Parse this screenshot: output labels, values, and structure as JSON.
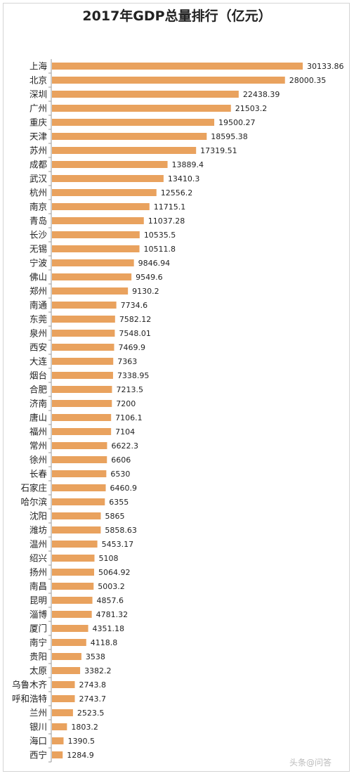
{
  "chart_data": {
    "type": "bar",
    "orientation": "horizontal",
    "title": "2017年GDP总量排行（亿元）",
    "bar_color": "#E9A25E",
    "axis_color": "#9a9a9a",
    "categories": [
      "上海",
      "北京",
      "深圳",
      "广州",
      "重庆",
      "天津",
      "苏州",
      "成都",
      "武汉",
      "杭州",
      "南京",
      "青岛",
      "长沙",
      "无锡",
      "宁波",
      "佛山",
      "郑州",
      "南通",
      "东莞",
      "泉州",
      "西安",
      "大连",
      "烟台",
      "合肥",
      "济南",
      "唐山",
      "福州",
      "常州",
      "徐州",
      "长春",
      "石家庄",
      "哈尔滨",
      "沈阳",
      "潍坊",
      "温州",
      "绍兴",
      "扬州",
      "南昌",
      "昆明",
      "淄博",
      "厦门",
      "南宁",
      "贵阳",
      "太原",
      "乌鲁木齐",
      "呼和浩特",
      "兰州",
      "银川",
      "海口",
      "西宁"
    ],
    "values": [
      30133.86,
      28000.35,
      22438.39,
      21503.2,
      19500.27,
      18595.38,
      17319.51,
      13889.4,
      13410.3,
      12556.2,
      11715.1,
      11037.28,
      10535.5,
      10511.8,
      9846.94,
      9549.6,
      9130.2,
      7734.6,
      7582.12,
      7548.01,
      7469.9,
      7363,
      7338.95,
      7213.5,
      7200,
      7106.1,
      7104,
      6622.3,
      6606,
      6530,
      6460.9,
      6355,
      5865,
      5858.63,
      5453.17,
      5108,
      5064.92,
      5003.2,
      4857.6,
      4781.32,
      4351.18,
      4118.8,
      3538,
      3382.2,
      2743.8,
      2743.7,
      2523.5,
      1803.2,
      1390.5,
      1284.9
    ],
    "labels": [
      "30133.86",
      "28000.35",
      "22438.39",
      "21503.2",
      "19500.27",
      "18595.38",
      "17319.51",
      "13889.4",
      "13410.3",
      "12556.2",
      "11715.1",
      "11037.28",
      "10535.5",
      "10511.8",
      "9846.94",
      "9549.6",
      "9130.2",
      "7734.6",
      "7582.12",
      "7548.01",
      "7469.9",
      "7363",
      "7338.95",
      "7213.5",
      "7200",
      "7106.1",
      "7104",
      "6622.3",
      "6606",
      "6530",
      "6460.9",
      "6355",
      "5865",
      "5858.63",
      "5453.17",
      "5108",
      "5064.92",
      "5003.2",
      "4857.6",
      "4781.32",
      "4351.18",
      "4118.8",
      "3538",
      "3382.2",
      "2743.8",
      "2743.7",
      "2523.5",
      "1803.2",
      "1390.5",
      "1284.9"
    ],
    "grid": false,
    "legend": "none"
  },
  "watermark": "头条@问答"
}
